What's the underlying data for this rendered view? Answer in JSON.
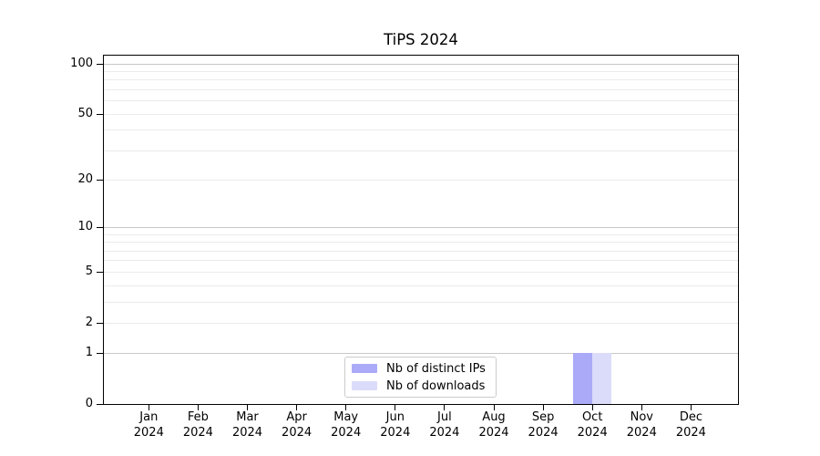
{
  "chart_data": {
    "type": "bar",
    "title": "TiPS 2024",
    "x_tick_months": [
      "Jan",
      "Feb",
      "Mar",
      "Apr",
      "May",
      "Jun",
      "Jul",
      "Aug",
      "Sep",
      "Oct",
      "Nov",
      "Dec"
    ],
    "x_tick_year": "2024",
    "categories": [
      "Jan 2024",
      "Feb 2024",
      "Mar 2024",
      "Apr 2024",
      "May 2024",
      "Jun 2024",
      "Jul 2024",
      "Aug 2024",
      "Sep 2024",
      "Oct 2024",
      "Nov 2024",
      "Dec 2024"
    ],
    "series": [
      {
        "name": "Nb of distinct IPs",
        "color": "#aaaaf8",
        "values": [
          0,
          0,
          0,
          0,
          0,
          0,
          0,
          0,
          0,
          1,
          0,
          0
        ]
      },
      {
        "name": "Nb of downloads",
        "color": "#dbdbfa",
        "values": [
          0,
          0,
          0,
          0,
          0,
          0,
          0,
          0,
          0,
          1,
          0,
          0
        ]
      }
    ],
    "yscale": "log1p",
    "ylim": [
      0,
      114
    ],
    "y_tick_values": [
      0,
      1,
      2,
      5,
      10,
      20,
      50,
      100
    ],
    "y_tick_labels": [
      "0",
      "1",
      "2",
      "5",
      "10",
      "20",
      "50",
      "100"
    ],
    "y_minor_grid_values": [
      2,
      3,
      4,
      5,
      6,
      7,
      8,
      9,
      20,
      30,
      40,
      50,
      60,
      70,
      80,
      90
    ],
    "y_major_grid_values": [
      1,
      10,
      100
    ],
    "grid": "horizontal",
    "legend_position": "lower center"
  },
  "legend": {
    "items": [
      "Nb of distinct IPs",
      "Nb of downloads"
    ]
  },
  "colors": {
    "bar_distinct_ips": "#aaaaf8",
    "bar_downloads": "#dbdbfa",
    "major_grid": "#c8c8c8",
    "minor_grid": "#ebebeb",
    "axis": "#000000",
    "legend_border": "#cccccc",
    "background": "#ffffff"
  }
}
